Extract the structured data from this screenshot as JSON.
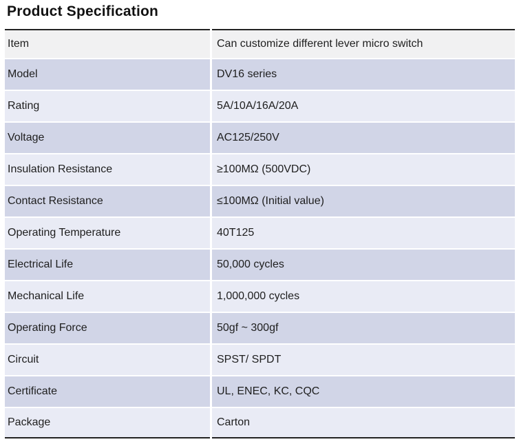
{
  "page": {
    "title": "Product Specification"
  },
  "table": {
    "rows": [
      {
        "label": "Item",
        "value": "Can customize different lever micro switch"
      },
      {
        "label": "Model",
        "value": "DV16 series"
      },
      {
        "label": "Rating",
        "value": "5A/10A/16A/20A"
      },
      {
        "label": "Voltage",
        "value": "AC125/250V"
      },
      {
        "label": "Insulation Resistance",
        "value": "≥100MΩ (500VDC)"
      },
      {
        "label": "Contact Resistance",
        "value": "≤100MΩ (Initial value)"
      },
      {
        "label": "Operating Temperature",
        "value": "40T125"
      },
      {
        "label": "Electrical Life",
        "value": "50,000 cycles"
      },
      {
        "label": "Mechanical Life",
        "value": "1,000,000 cycles"
      },
      {
        "label": "Operating Force",
        "value": "50gf ~ 300gf"
      },
      {
        "label": "Circuit",
        "value": "SPST/ SPDT"
      },
      {
        "label": "Certificate",
        "value": "UL, ENEC, KC, CQC"
      },
      {
        "label": "Package",
        "value": "Carton"
      }
    ],
    "colors": {
      "header_row_bg": "#F1F1F2",
      "band_dark_bg": "#D1D5E7",
      "band_light_bg": "#E9EBF5",
      "border": "#222222",
      "text": "#1E1E1E"
    }
  }
}
